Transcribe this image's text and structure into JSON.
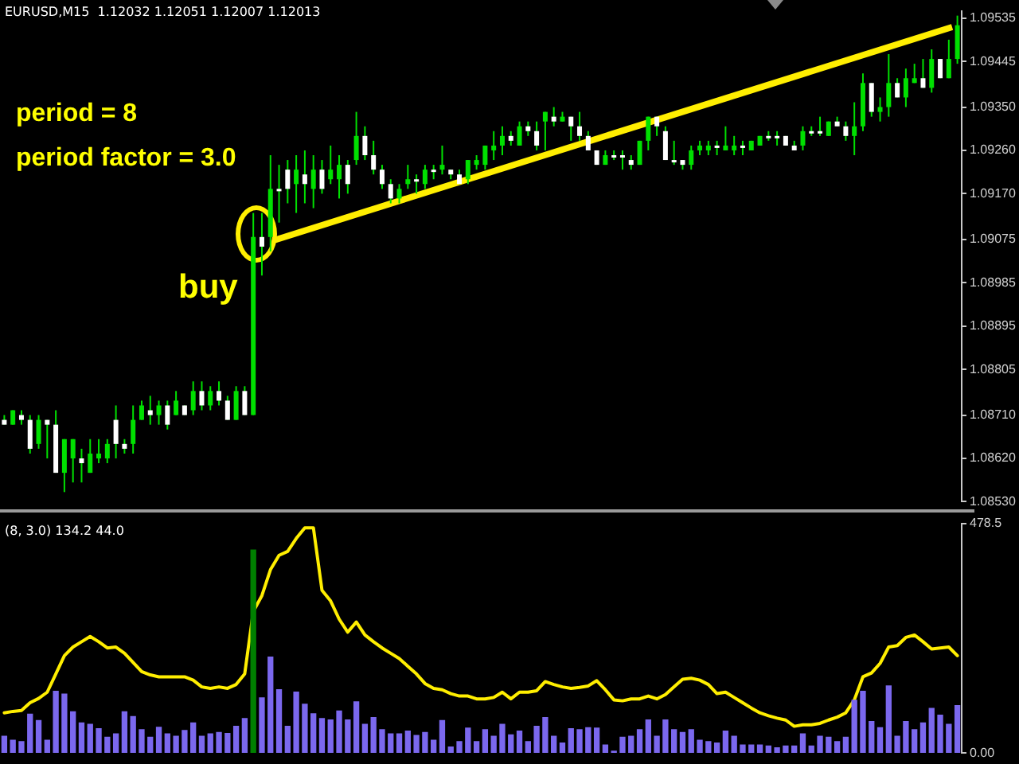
{
  "chart_data": [
    {
      "type": "candlestick",
      "title": "EURUSD,M15  1.12032 1.12051 1.12007 1.12013",
      "color": "#00e000",
      "colors": [
        "#ffffff",
        "#00e000",
        "#ffffff",
        "#ffffff",
        "#00e000",
        "#ffffff",
        "#ffffff",
        "#00e000",
        "#00e000",
        "#ffffff",
        "#00e000",
        "#00e000",
        "#00e000",
        "#ffffff",
        "#ffffff",
        "#00e000",
        "#00e000",
        "#ffffff",
        "#00e000",
        "#ffffff",
        "#00e000",
        "#ffffff",
        "#00e000",
        "#ffffff",
        "#00e000",
        "#ffffff",
        "#ffffff",
        "#00e000",
        "#ffffff",
        "#00e000",
        "#ffffff",
        "#00e000",
        "#ffffff",
        "#ffffff",
        "#00e000",
        "#ffffff",
        "#00e000",
        "#ffffff",
        "#00e000",
        "#00e000",
        "#ffffff",
        "#00e000",
        "#ffffff",
        "#ffffff",
        "#ffffff",
        "#ffffff",
        "#00e000",
        "#00e000",
        "#ffffff",
        "#00e000",
        "#ffffff",
        "#00e000",
        "#ffffff",
        "#ffffff",
        "#00e000",
        "#00e000",
        "#00e000",
        "#00e000",
        "#00e000",
        "#ffffff",
        "#00e000",
        "#ffffff",
        "#ffffff",
        "#00e000",
        "#ffffff",
        "#00e000",
        "#ffffff",
        "#ffffff",
        "#ffffff",
        "#ffffff",
        "#00e000",
        "#ffffff",
        "#ffffff",
        "#ffffff",
        "#00e000",
        "#00e000",
        "#ffffff",
        "#ffffff",
        "#ffffff",
        "#ffffff",
        "#00e000",
        "#00e000",
        "#00e000",
        "#ffffff",
        "#00e000",
        "#00e000",
        "#ffffff",
        "#00e000",
        "#00e000",
        "#ffffff",
        "#ffffff",
        "#ffffff",
        "#ffffff",
        "#00e000",
        "#ffffff",
        "#ffffff",
        "#00e000",
        "#ffffff",
        "#ffffff",
        "#00e000",
        "#00e000",
        "#ffffff",
        "#00e000",
        "#00e000",
        "#ffffff",
        "#00e000",
        "#00e000",
        "#ffffff",
        "#00e000",
        "#ffffff",
        "#00e000",
        "#00e000"
      ],
      "categories": [
        null,
        null,
        null,
        null,
        null,
        null,
        null,
        null,
        null,
        null,
        null,
        null,
        null,
        null,
        null,
        null,
        null,
        null,
        null,
        null,
        null,
        null,
        null,
        null,
        null,
        null,
        null,
        null,
        null,
        null,
        null,
        null,
        null,
        null,
        null,
        null,
        null,
        null,
        null,
        null,
        null,
        null,
        null,
        null,
        null,
        null,
        null,
        null,
        null,
        null,
        null,
        null,
        null,
        null,
        null,
        null,
        null,
        null,
        null,
        null,
        null,
        null,
        null,
        null,
        null,
        null,
        null,
        null,
        null,
        null,
        null,
        null,
        null,
        null,
        null,
        null,
        null,
        null,
        null,
        null,
        null,
        null,
        null,
        null,
        null,
        null,
        null,
        null,
        null,
        null,
        null,
        null,
        null,
        null,
        null,
        null,
        null,
        null,
        null,
        null,
        null,
        null,
        null,
        null,
        null,
        null,
        null,
        null,
        null,
        null,
        null,
        null
      ],
      "ohlc": [
        [
          1.087,
          1.0871,
          1.0869,
          1.0869
        ],
        [
          1.0869,
          1.0872,
          1.0869,
          1.0872
        ],
        [
          1.0871,
          1.0872,
          1.0869,
          1.087
        ],
        [
          1.087,
          1.0871,
          1.0863,
          1.0864
        ],
        [
          1.0865,
          1.0871,
          1.0864,
          1.087
        ],
        [
          1.087,
          1.087,
          1.0862,
          1.0869
        ],
        [
          1.0869,
          1.0872,
          1.0859,
          1.0859
        ],
        [
          1.0859,
          1.0866,
          1.0855,
          1.0866
        ],
        [
          1.0862,
          1.0866,
          1.0857,
          1.0866
        ],
        [
          1.0862,
          1.0864,
          1.0857,
          1.0861
        ],
        [
          1.0859,
          1.0866,
          1.0859,
          1.0863
        ],
        [
          1.0862,
          1.0866,
          1.0861,
          1.0863
        ],
        [
          1.0862,
          1.0866,
          1.0861,
          1.0865
        ],
        [
          1.087,
          1.0873,
          1.0862,
          1.0865
        ],
        [
          1.0865,
          1.0866,
          1.0863,
          1.0864
        ],
        [
          1.0865,
          1.0873,
          1.0863,
          1.087
        ],
        [
          1.087,
          1.0874,
          1.087,
          1.0873
        ],
        [
          1.0872,
          1.0875,
          1.0869,
          1.0871
        ],
        [
          1.0871,
          1.0874,
          1.0869,
          1.0873
        ],
        [
          1.0873,
          1.0874,
          1.0868,
          1.0869
        ],
        [
          1.0871,
          1.0876,
          1.0871,
          1.0874
        ],
        [
          1.0873,
          1.0873,
          1.0871,
          1.0871
        ],
        [
          1.0872,
          1.0878,
          1.0871,
          1.0876
        ],
        [
          1.0876,
          1.0878,
          1.0872,
          1.0873
        ],
        [
          1.0873,
          1.0877,
          1.0872,
          1.0876
        ],
        [
          1.0876,
          1.0878,
          1.0873,
          1.0874
        ],
        [
          1.0874,
          1.0875,
          1.087,
          1.087
        ],
        [
          1.087,
          1.0877,
          1.087,
          1.0876
        ],
        [
          1.0876,
          1.0877,
          1.0871,
          1.0871
        ],
        [
          1.0871,
          1.0913,
          1.0871,
          1.0908
        ],
        [
          1.0908,
          1.0913,
          1.09,
          1.0906
        ],
        [
          1.0908,
          1.0925,
          1.0905,
          1.0918
        ],
        [
          1.0918,
          1.0923,
          1.0911,
          1.0918
        ],
        [
          1.0922,
          1.0924,
          1.0915,
          1.0918
        ],
        [
          1.0919,
          1.0925,
          1.0913,
          1.0922
        ],
        [
          1.0921,
          1.0926,
          1.0915,
          1.0919
        ],
        [
          1.0918,
          1.0925,
          1.0914,
          1.0922
        ],
        [
          1.0922,
          1.0924,
          1.0917,
          1.0918
        ],
        [
          1.092,
          1.0927,
          1.0919,
          1.0922
        ],
        [
          1.092,
          1.0925,
          1.0916,
          1.0923
        ],
        [
          1.0923,
          1.0924,
          1.0917,
          1.0919
        ],
        [
          1.0924,
          1.0934,
          1.0923,
          1.0929
        ],
        [
          1.0929,
          1.0931,
          1.0924,
          1.0925
        ],
        [
          1.0925,
          1.0928,
          1.0921,
          1.0922
        ],
        [
          1.0922,
          1.0923,
          1.0918,
          1.0919
        ],
        [
          1.0919,
          1.092,
          1.0915,
          1.0916
        ],
        [
          1.0916,
          1.0919,
          1.0915,
          1.0918
        ],
        [
          1.0919,
          1.0923,
          1.0918,
          1.092
        ],
        [
          1.092,
          1.0921,
          1.0917,
          1.092
        ],
        [
          1.0919,
          1.0923,
          1.0918,
          1.0922
        ],
        [
          1.0922,
          1.0923,
          1.092,
          1.0922
        ],
        [
          1.0922,
          1.0927,
          1.0921,
          1.0923
        ],
        [
          1.0922,
          1.0922,
          1.092,
          1.0921
        ],
        [
          1.0921,
          1.0922,
          1.0919,
          1.0919
        ],
        [
          1.092,
          1.0924,
          1.0919,
          1.0924
        ],
        [
          1.0923,
          1.0925,
          1.0922,
          1.0924
        ],
        [
          1.0923,
          1.0927,
          1.0922,
          1.0927
        ],
        [
          1.0926,
          1.093,
          1.0924,
          1.0927
        ],
        [
          1.0927,
          1.0931,
          1.0925,
          1.0929
        ],
        [
          1.0929,
          1.093,
          1.0927,
          1.0928
        ],
        [
          1.0927,
          1.0932,
          1.0927,
          1.0931
        ],
        [
          1.0931,
          1.0932,
          1.0929,
          1.093
        ],
        [
          1.093,
          1.0932,
          1.0926,
          1.0927
        ],
        [
          1.0932,
          1.0934,
          1.0926,
          1.0934
        ],
        [
          1.0933,
          1.0935,
          1.0931,
          1.0932
        ],
        [
          1.0932,
          1.0934,
          1.0932,
          1.0933
        ],
        [
          1.0933,
          1.0933,
          1.0928,
          1.0931
        ],
        [
          1.0931,
          1.0934,
          1.0928,
          1.0929
        ],
        [
          1.0929,
          1.093,
          1.0926,
          1.0926
        ],
        [
          1.0926,
          1.0926,
          1.0923,
          1.0923
        ],
        [
          1.0923,
          1.0926,
          1.0923,
          1.0925
        ],
        [
          1.0925,
          1.0926,
          1.0924,
          1.0925
        ],
        [
          1.0925,
          1.0926,
          1.0922,
          1.0925
        ],
        [
          1.0924,
          1.0925,
          1.0922,
          1.0923
        ],
        [
          1.0923,
          1.0928,
          1.0923,
          1.0928
        ],
        [
          1.0928,
          1.0933,
          1.0926,
          1.0933
        ],
        [
          1.0933,
          1.0933,
          1.0929,
          1.0931
        ],
        [
          1.093,
          1.0931,
          1.0924,
          1.0924
        ],
        [
          1.0924,
          1.0928,
          1.0923,
          1.0924
        ],
        [
          1.0924,
          1.0924,
          1.0922,
          1.0923
        ],
        [
          1.0923,
          1.0927,
          1.0922,
          1.0926
        ],
        [
          1.0926,
          1.0928,
          1.0925,
          1.0927
        ],
        [
          1.0926,
          1.0928,
          1.0925,
          1.0927
        ],
        [
          1.0927,
          1.0928,
          1.0925,
          1.0927
        ],
        [
          1.0926,
          1.0931,
          1.0926,
          1.0927
        ],
        [
          1.0926,
          1.0929,
          1.0925,
          1.0927
        ],
        [
          1.0927,
          1.0928,
          1.0925,
          1.0927
        ],
        [
          1.0926,
          1.0928,
          1.0926,
          1.0928
        ],
        [
          1.0927,
          1.0929,
          1.0927,
          1.0929
        ],
        [
          1.0929,
          1.093,
          1.0928,
          1.0929
        ],
        [
          1.0929,
          1.093,
          1.0927,
          1.0929
        ],
        [
          1.0929,
          1.0929,
          1.0927,
          1.0927
        ],
        [
          1.0927,
          1.0928,
          1.0926,
          1.0926
        ],
        [
          1.0927,
          1.0931,
          1.0926,
          1.093
        ],
        [
          1.093,
          1.0931,
          1.0929,
          1.093
        ],
        [
          1.093,
          1.0933,
          1.0929,
          1.093
        ],
        [
          1.0929,
          1.0932,
          1.0929,
          1.0932
        ],
        [
          1.0932,
          1.0933,
          1.0931,
          1.0931
        ],
        [
          1.0931,
          1.0932,
          1.0928,
          1.0929
        ],
        [
          1.0929,
          1.0936,
          1.0925,
          1.0931
        ],
        [
          1.0931,
          1.0942,
          1.093,
          1.094
        ],
        [
          1.094,
          1.094,
          1.0933,
          1.0934
        ],
        [
          1.0934,
          1.0937,
          1.0932,
          1.0935
        ],
        [
          1.0935,
          1.0946,
          1.0933,
          1.094
        ],
        [
          1.094,
          1.0941,
          1.0937,
          1.0937
        ],
        [
          1.0937,
          1.0943,
          1.0935,
          1.0941
        ],
        [
          1.094,
          1.0944,
          1.094,
          1.0941
        ],
        [
          1.0941,
          1.0945,
          1.0939,
          1.0939
        ],
        [
          1.0939,
          1.0947,
          1.0938,
          1.0945
        ],
        [
          1.0945,
          1.0945,
          1.0941,
          1.0941
        ],
        [
          1.0941,
          1.0949,
          1.0941,
          1.0945
        ],
        [
          1.0945,
          1.0954,
          1.0944,
          1.0952
        ]
      ],
      "ylim": [
        1.0853,
        1.0955
      ],
      "yticks": [
        {
          "value": 1.09535,
          "label": "1.09535"
        },
        {
          "value": 1.09445,
          "label": "1.09445"
        },
        {
          "value": 1.0935,
          "label": "1.09350"
        },
        {
          "value": 1.0926,
          "label": "1.09260"
        },
        {
          "value": 1.0917,
          "label": "1.09170"
        },
        {
          "value": 1.09075,
          "label": "1.09075"
        },
        {
          "value": 1.08985,
          "label": "1.08985"
        },
        {
          "value": 1.08895,
          "label": "1.08895"
        },
        {
          "value": 1.08805,
          "label": "1.08805"
        },
        {
          "value": 1.0871,
          "label": "1.08710"
        },
        {
          "value": 1.0862,
          "label": "1.08620"
        },
        {
          "value": 1.0853,
          "label": "1.08530"
        }
      ],
      "annotations": [
        "period = 8",
        "period factor = 3.0",
        "buy"
      ],
      "legend": false
    },
    {
      "type": "bar",
      "subtitle": "(8, 3.0) 134.2 44.0",
      "categories": [
        null,
        null,
        null,
        null,
        null,
        null,
        null,
        null,
        null,
        null,
        null,
        null,
        null,
        null,
        null,
        null,
        null,
        null,
        null,
        null,
        null,
        null,
        null,
        null,
        null,
        null,
        null,
        null,
        null,
        null,
        null,
        null,
        null,
        null,
        null,
        null,
        null,
        null,
        null,
        null,
        null,
        null,
        null,
        null,
        null,
        null,
        null,
        null,
        null,
        null,
        null,
        null,
        null,
        null,
        null,
        null,
        null,
        null,
        null,
        null,
        null,
        null,
        null,
        null,
        null,
        null,
        null,
        null,
        null,
        null,
        null,
        null,
        null,
        null,
        null,
        null,
        null,
        null,
        null,
        null,
        null,
        null,
        null,
        null,
        null,
        null,
        null,
        null,
        null,
        null,
        null,
        null,
        null,
        null,
        null,
        null,
        null,
        null,
        null,
        null,
        null,
        null,
        null,
        null,
        null,
        null,
        null,
        null,
        null,
        null,
        null,
        null
      ],
      "series": [
        {
          "type": "bar",
          "colors": [
            "#7b68ee",
            "#7b68ee",
            "#7b68ee",
            "#7b68ee",
            "#7b68ee",
            "#7b68ee",
            "#7b68ee",
            "#7b68ee",
            "#7b68ee",
            "#7b68ee",
            "#7b68ee",
            "#7b68ee",
            "#7b68ee",
            "#7b68ee",
            "#7b68ee",
            "#7b68ee",
            "#7b68ee",
            "#7b68ee",
            "#7b68ee",
            "#7b68ee",
            "#7b68ee",
            "#7b68ee",
            "#7b68ee",
            "#7b68ee",
            "#7b68ee",
            "#7b68ee",
            "#7b68ee",
            "#7b68ee",
            "#7b68ee",
            "#008000",
            "#7b68ee",
            "#7b68ee",
            "#7b68ee",
            "#7b68ee",
            "#7b68ee",
            "#7b68ee",
            "#7b68ee",
            "#7b68ee",
            "#7b68ee",
            "#7b68ee",
            "#7b68ee",
            "#7b68ee",
            "#7b68ee",
            "#7b68ee",
            "#7b68ee",
            "#7b68ee",
            "#7b68ee",
            "#7b68ee",
            "#7b68ee",
            "#7b68ee",
            "#7b68ee",
            "#7b68ee",
            "#7b68ee",
            "#7b68ee",
            "#7b68ee",
            "#7b68ee",
            "#7b68ee",
            "#7b68ee",
            "#7b68ee",
            "#7b68ee",
            "#7b68ee",
            "#7b68ee",
            "#7b68ee",
            "#7b68ee",
            "#7b68ee",
            "#7b68ee",
            "#7b68ee",
            "#7b68ee",
            "#7b68ee",
            "#7b68ee",
            "#7b68ee",
            "#7b68ee",
            "#7b68ee",
            "#7b68ee",
            "#7b68ee",
            "#7b68ee",
            "#7b68ee",
            "#7b68ee",
            "#7b68ee",
            "#7b68ee",
            "#7b68ee",
            "#7b68ee",
            "#7b68ee",
            "#7b68ee",
            "#7b68ee",
            "#7b68ee",
            "#7b68ee",
            "#7b68ee",
            "#7b68ee",
            "#7b68ee",
            "#7b68ee",
            "#7b68ee",
            "#7b68ee",
            "#7b68ee",
            "#7b68ee",
            "#7b68ee",
            "#7b68ee",
            "#7b68ee",
            "#7b68ee",
            "#7b68ee",
            "#7b68ee",
            "#7b68ee",
            "#7b68ee",
            "#7b68ee",
            "#7b68ee",
            "#7b68ee",
            "#7b68ee",
            "#7b68ee",
            "#7b68ee",
            "#7b68ee",
            "#7b68ee",
            "#7b68ee"
          ],
          "values": [
            35,
            27,
            24,
            81,
            68,
            27,
            129,
            123,
            86,
            63,
            60,
            51,
            33,
            40,
            86,
            76,
            49,
            33,
            54,
            40,
            35,
            47,
            63,
            35,
            40,
            43,
            41,
            56,
            72,
            423,
            115,
            200,
            132,
            56,
            127,
            102,
            82,
            72,
            69,
            88,
            69,
            107,
            60,
            74,
            49,
            40,
            40,
            46,
            37,
            43,
            27,
            68,
            13,
            24,
            52,
            24,
            49,
            35,
            60,
            38,
            46,
            24,
            56,
            74,
            35,
            21,
            51,
            49,
            53,
            52,
            17,
            4,
            33,
            35,
            49,
            69,
            35,
            69,
            49,
            43,
            49,
            27,
            24,
            21,
            46,
            35,
            17,
            17,
            17,
            15,
            11,
            15,
            15,
            40,
            15,
            35,
            33,
            24,
            33,
            110,
            129,
            66,
            53,
            140,
            35,
            66,
            49,
            63,
            93,
            79,
            60,
            99
          ]
        },
        {
          "type": "line",
          "color": "#ffee00",
          "values": [
            84,
            87,
            89,
            105,
            114,
            127,
            165,
            203,
            221,
            232,
            243,
            232,
            219,
            221,
            208,
            189,
            170,
            163,
            159,
            159,
            159,
            159,
            152,
            138,
            135,
            138,
            135,
            143,
            165,
            295,
            328,
            382,
            412,
            420,
            447,
            469,
            469,
            339,
            317,
            279,
            252,
            273,
            246,
            232,
            219,
            208,
            197,
            181,
            165,
            145,
            135,
            132,
            124,
            119,
            119,
            113,
            113,
            116,
            127,
            113,
            127,
            127,
            130,
            149,
            143,
            138,
            135,
            137,
            140,
            151,
            132,
            111,
            109,
            113,
            113,
            119,
            113,
            122,
            138,
            154,
            156,
            152,
            143,
            124,
            127,
            116,
            105,
            94,
            84,
            78,
            73,
            69,
            56,
            59,
            59,
            62,
            69,
            75,
            84,
            111,
            159,
            167,
            187,
            221,
            224,
            241,
            246,
            232,
            217,
            219,
            221,
            203
          ]
        }
      ],
      "ylim": [
        0,
        478.5
      ],
      "yticks": [
        478.5,
        {
          "value": 0,
          "label": "0.00"
        }
      ],
      "legend": false
    }
  ]
}
